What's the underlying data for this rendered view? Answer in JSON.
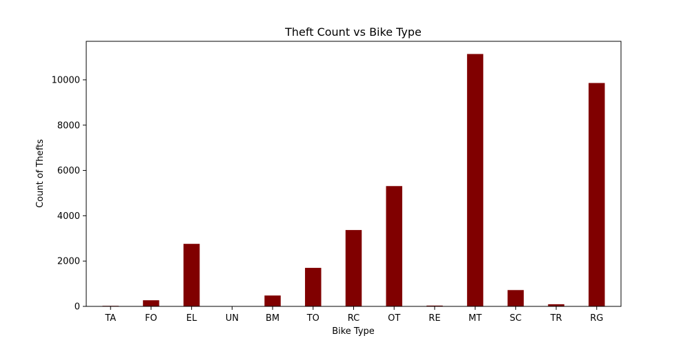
{
  "chart_data": {
    "type": "bar",
    "title": "Theft Count vs Bike Type",
    "xlabel": "Bike Type",
    "ylabel": "Count of Thefts",
    "categories": [
      "TA",
      "FO",
      "EL",
      "UN",
      "BM",
      "TO",
      "RC",
      "OT",
      "RE",
      "MT",
      "SC",
      "TR",
      "RG"
    ],
    "values": [
      25,
      270,
      2760,
      8,
      480,
      1700,
      3370,
      5310,
      35,
      11140,
      720,
      95,
      9860
    ],
    "yticks": [
      0,
      2000,
      4000,
      6000,
      8000,
      10000
    ],
    "ylim": [
      0,
      11700
    ],
    "grid": false,
    "legend": "none",
    "bar_color": "#800000"
  }
}
